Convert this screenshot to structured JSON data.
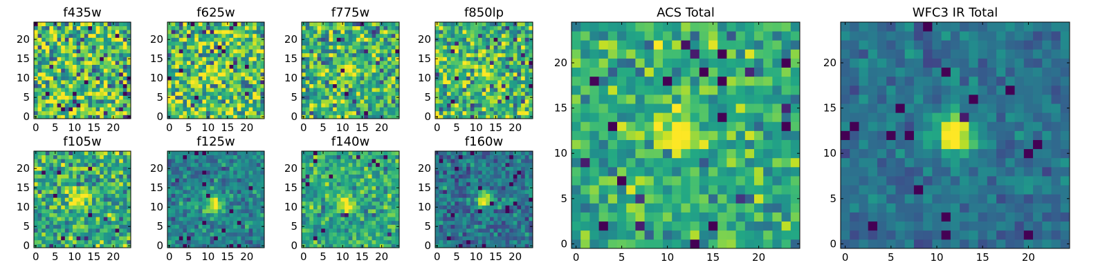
{
  "chart_data": [
    {
      "type": "heatmap",
      "title": "f435w",
      "grid_size": 25,
      "xlim": [
        -0.5,
        24.5
      ],
      "ylim": [
        -0.5,
        24.5
      ],
      "xticks": [
        0,
        5,
        10,
        15,
        20
      ],
      "yticks": [
        0,
        5,
        10,
        15,
        20
      ],
      "peak": [
        12,
        12
      ],
      "source_strength": 0.0,
      "noise_level": 1.0,
      "mean_level": 0.72,
      "colormap": "viridis",
      "grid": false
    },
    {
      "type": "heatmap",
      "title": "f625w",
      "grid_size": 25,
      "xlim": [
        -0.5,
        24.5
      ],
      "ylim": [
        -0.5,
        24.5
      ],
      "xticks": [
        0,
        5,
        10,
        15,
        20
      ],
      "yticks": [
        0,
        5,
        10,
        15,
        20
      ],
      "peak": [
        12,
        12
      ],
      "source_strength": 0.25,
      "noise_level": 0.9,
      "mean_level": 0.7,
      "colormap": "viridis",
      "grid": false
    },
    {
      "type": "heatmap",
      "title": "f775w",
      "grid_size": 25,
      "xlim": [
        -0.5,
        24.5
      ],
      "ylim": [
        -0.5,
        24.5
      ],
      "xticks": [
        0,
        5,
        10,
        15,
        20
      ],
      "yticks": [
        0,
        5,
        10,
        15,
        20
      ],
      "peak": [
        12,
        12
      ],
      "source_strength": 0.35,
      "noise_level": 0.8,
      "mean_level": 0.65,
      "colormap": "viridis",
      "grid": false
    },
    {
      "type": "heatmap",
      "title": "f850lp",
      "grid_size": 25,
      "xlim": [
        -0.5,
        24.5
      ],
      "ylim": [
        -0.5,
        24.5
      ],
      "xticks": [
        0,
        5,
        10,
        15,
        20
      ],
      "yticks": [
        0,
        5,
        10,
        15,
        20
      ],
      "peak": [
        12,
        12
      ],
      "source_strength": 0.35,
      "noise_level": 0.8,
      "mean_level": 0.65,
      "colormap": "viridis",
      "grid": false
    },
    {
      "type": "heatmap",
      "title": "f105w",
      "grid_size": 25,
      "xlim": [
        -0.5,
        24.5
      ],
      "ylim": [
        -0.5,
        24.5
      ],
      "xticks": [
        0,
        5,
        10,
        15,
        20
      ],
      "yticks": [
        0,
        5,
        10,
        15,
        20
      ],
      "peak": [
        11,
        12
      ],
      "source_strength": 0.45,
      "noise_level": 0.65,
      "mean_level": 0.62,
      "colormap": "viridis",
      "grid": false
    },
    {
      "type": "heatmap",
      "title": "f125w",
      "grid_size": 25,
      "xlim": [
        -0.5,
        24.5
      ],
      "ylim": [
        -0.5,
        24.5
      ],
      "xticks": [
        0,
        5,
        10,
        15,
        20
      ],
      "yticks": [
        0,
        5,
        10,
        15,
        20
      ],
      "peak": [
        12,
        11
      ],
      "source_strength": 0.6,
      "noise_level": 0.45,
      "mean_level": 0.45,
      "colormap": "viridis",
      "grid": false
    },
    {
      "type": "heatmap",
      "title": "f140w",
      "grid_size": 25,
      "xlim": [
        -0.5,
        24.5
      ],
      "ylim": [
        -0.5,
        24.5
      ],
      "xticks": [
        0,
        5,
        10,
        15,
        20
      ],
      "yticks": [
        0,
        5,
        10,
        15,
        20
      ],
      "peak": [
        11,
        11
      ],
      "source_strength": 0.5,
      "noise_level": 0.5,
      "mean_level": 0.6,
      "colormap": "viridis",
      "grid": false
    },
    {
      "type": "heatmap",
      "title": "f160w",
      "grid_size": 25,
      "xlim": [
        -0.5,
        24.5
      ],
      "ylim": [
        -0.5,
        24.5
      ],
      "xticks": [
        0,
        5,
        10,
        15,
        20
      ],
      "yticks": [
        0,
        5,
        10,
        15,
        20
      ],
      "peak": [
        12,
        12
      ],
      "source_strength": 0.6,
      "noise_level": 0.45,
      "mean_level": 0.38,
      "colormap": "viridis",
      "grid": false
    },
    {
      "type": "heatmap",
      "title": "ACS Total",
      "grid_size": 25,
      "xlim": [
        -0.5,
        24.5
      ],
      "ylim": [
        -0.5,
        24.5
      ],
      "xticks": [
        0,
        5,
        10,
        15,
        20
      ],
      "yticks": [
        0,
        5,
        10,
        15,
        20
      ],
      "peak": [
        11,
        12
      ],
      "source_strength": 0.5,
      "noise_level": 0.55,
      "mean_level": 0.62,
      "colormap": "viridis",
      "grid": false
    },
    {
      "type": "heatmap",
      "title": "WFC3 IR Total",
      "grid_size": 25,
      "xlim": [
        -0.5,
        24.5
      ],
      "ylim": [
        -0.5,
        24.5
      ],
      "xticks": [
        0,
        5,
        10,
        15,
        20
      ],
      "yticks": [
        0,
        5,
        10,
        15,
        20
      ],
      "peak": [
        12,
        12
      ],
      "source_strength": 0.75,
      "noise_level": 0.3,
      "mean_level": 0.38,
      "colormap": "viridis",
      "grid": false
    }
  ]
}
